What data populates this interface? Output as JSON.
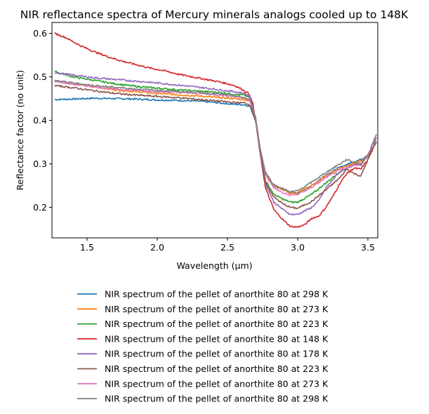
{
  "chart_data": {
    "type": "line",
    "title": "NIR reflectance spectra of Mercury minerals analogs cooled up to 148K",
    "xlabel": "Wavelength (μm)",
    "ylabel": "Reflectance factor (no unit)",
    "xlim": [
      1.25,
      3.57
    ],
    "ylim": [
      0.13,
      0.625
    ],
    "xticks": [
      1.5,
      2.0,
      2.5,
      3.0,
      3.5
    ],
    "xtick_labels": [
      "1.5",
      "2.0",
      "2.5",
      "3.0",
      "3.5"
    ],
    "yticks": [
      0.2,
      0.3,
      0.4,
      0.5,
      0.6
    ],
    "ytick_labels": [
      "0.2",
      "0.3",
      "0.4",
      "0.5",
      "0.6"
    ],
    "grid": false,
    "legend_position": "below",
    "series": [
      {
        "name": "NIR spectrum of the pellet of anorthite 80 at 298 K",
        "color": "#1f77b4",
        "points": [
          [
            1.27,
            0.448
          ],
          [
            1.4,
            0.449
          ],
          [
            1.55,
            0.451
          ],
          [
            1.7,
            0.45
          ],
          [
            1.85,
            0.449
          ],
          [
            2.0,
            0.447
          ],
          [
            2.15,
            0.446
          ],
          [
            2.3,
            0.444
          ],
          [
            2.45,
            0.44
          ],
          [
            2.55,
            0.437
          ],
          [
            2.62,
            0.436
          ],
          [
            2.66,
            0.432
          ],
          [
            2.7,
            0.4
          ],
          [
            2.73,
            0.34
          ],
          [
            2.77,
            0.28
          ],
          [
            2.83,
            0.25
          ],
          [
            2.9,
            0.24
          ],
          [
            2.95,
            0.234
          ],
          [
            3.0,
            0.233
          ],
          [
            3.1,
            0.25
          ],
          [
            3.2,
            0.275
          ],
          [
            3.3,
            0.292
          ],
          [
            3.4,
            0.305
          ],
          [
            3.45,
            0.31
          ],
          [
            3.5,
            0.322
          ],
          [
            3.56,
            0.348
          ]
        ]
      },
      {
        "name": "NIR spectrum of the pellet of anorthite 80 at 273 K",
        "color": "#ff7f0e",
        "points": [
          [
            1.27,
            0.49
          ],
          [
            1.4,
            0.484
          ],
          [
            1.55,
            0.478
          ],
          [
            1.7,
            0.47
          ],
          [
            1.85,
            0.466
          ],
          [
            2.0,
            0.462
          ],
          [
            2.15,
            0.459
          ],
          [
            2.3,
            0.456
          ],
          [
            2.45,
            0.452
          ],
          [
            2.55,
            0.45
          ],
          [
            2.62,
            0.448
          ],
          [
            2.66,
            0.444
          ],
          [
            2.7,
            0.405
          ],
          [
            2.73,
            0.34
          ],
          [
            2.77,
            0.278
          ],
          [
            2.83,
            0.25
          ],
          [
            2.9,
            0.24
          ],
          [
            2.95,
            0.232
          ],
          [
            3.0,
            0.234
          ],
          [
            3.1,
            0.25
          ],
          [
            3.2,
            0.272
          ],
          [
            3.3,
            0.29
          ],
          [
            3.4,
            0.302
          ],
          [
            3.45,
            0.305
          ],
          [
            3.5,
            0.32
          ],
          [
            3.56,
            0.35
          ]
        ]
      },
      {
        "name": "NIR spectrum of the pellet of anorthite 80 at 223 K",
        "color": "#2ca02c",
        "points": [
          [
            1.27,
            0.512
          ],
          [
            1.4,
            0.5
          ],
          [
            1.55,
            0.492
          ],
          [
            1.7,
            0.484
          ],
          [
            1.85,
            0.478
          ],
          [
            2.0,
            0.474
          ],
          [
            2.15,
            0.47
          ],
          [
            2.3,
            0.467
          ],
          [
            2.45,
            0.464
          ],
          [
            2.55,
            0.46
          ],
          [
            2.62,
            0.458
          ],
          [
            2.66,
            0.452
          ],
          [
            2.7,
            0.405
          ],
          [
            2.73,
            0.33
          ],
          [
            2.77,
            0.262
          ],
          [
            2.83,
            0.23
          ],
          [
            2.9,
            0.218
          ],
          [
            2.95,
            0.212
          ],
          [
            3.0,
            0.212
          ],
          [
            3.1,
            0.23
          ],
          [
            3.2,
            0.256
          ],
          [
            3.3,
            0.282
          ],
          [
            3.4,
            0.298
          ],
          [
            3.45,
            0.3
          ],
          [
            3.5,
            0.318
          ],
          [
            3.56,
            0.35
          ]
        ]
      },
      {
        "name": "NIR spectrum of the pellet of anorthite 80 at 148 K",
        "color": "#d62728",
        "points": [
          [
            1.27,
            0.6
          ],
          [
            1.35,
            0.59
          ],
          [
            1.45,
            0.572
          ],
          [
            1.55,
            0.558
          ],
          [
            1.65,
            0.546
          ],
          [
            1.75,
            0.536
          ],
          [
            1.85,
            0.528
          ],
          [
            1.95,
            0.52
          ],
          [
            2.05,
            0.514
          ],
          [
            2.15,
            0.506
          ],
          [
            2.25,
            0.5
          ],
          [
            2.35,
            0.494
          ],
          [
            2.45,
            0.488
          ],
          [
            2.55,
            0.48
          ],
          [
            2.6,
            0.472
          ],
          [
            2.65,
            0.462
          ],
          [
            2.68,
            0.44
          ],
          [
            2.7,
            0.4
          ],
          [
            2.73,
            0.33
          ],
          [
            2.77,
            0.245
          ],
          [
            2.83,
            0.195
          ],
          [
            2.9,
            0.17
          ],
          [
            2.95,
            0.156
          ],
          [
            3.0,
            0.155
          ],
          [
            3.05,
            0.16
          ],
          [
            3.1,
            0.175
          ],
          [
            3.15,
            0.18
          ],
          [
            3.2,
            0.2
          ],
          [
            3.25,
            0.225
          ],
          [
            3.3,
            0.255
          ],
          [
            3.35,
            0.278
          ],
          [
            3.4,
            0.29
          ],
          [
            3.45,
            0.288
          ],
          [
            3.5,
            0.31
          ],
          [
            3.56,
            0.35
          ]
        ]
      },
      {
        "name": "NIR spectrum of the pellet of anorthite 80 at 178 K",
        "color": "#9467bd",
        "points": [
          [
            1.27,
            0.51
          ],
          [
            1.4,
            0.504
          ],
          [
            1.55,
            0.498
          ],
          [
            1.7,
            0.494
          ],
          [
            1.85,
            0.49
          ],
          [
            2.0,
            0.486
          ],
          [
            2.15,
            0.481
          ],
          [
            2.3,
            0.476
          ],
          [
            2.45,
            0.47
          ],
          [
            2.55,
            0.466
          ],
          [
            2.62,
            0.462
          ],
          [
            2.66,
            0.455
          ],
          [
            2.7,
            0.405
          ],
          [
            2.73,
            0.33
          ],
          [
            2.77,
            0.255
          ],
          [
            2.83,
            0.212
          ],
          [
            2.9,
            0.194
          ],
          [
            2.95,
            0.184
          ],
          [
            3.0,
            0.184
          ],
          [
            3.1,
            0.2
          ],
          [
            3.15,
            0.215
          ],
          [
            3.2,
            0.245
          ],
          [
            3.3,
            0.282
          ],
          [
            3.4,
            0.298
          ],
          [
            3.45,
            0.298
          ],
          [
            3.5,
            0.32
          ],
          [
            3.56,
            0.368
          ]
        ]
      },
      {
        "name": "NIR spectrum of the pellet of anorthite 80 at 223 K",
        "color": "#8c564b",
        "points": [
          [
            1.27,
            0.48
          ],
          [
            1.4,
            0.475
          ],
          [
            1.55,
            0.468
          ],
          [
            1.7,
            0.462
          ],
          [
            1.85,
            0.458
          ],
          [
            2.0,
            0.455
          ],
          [
            2.15,
            0.452
          ],
          [
            2.3,
            0.448
          ],
          [
            2.45,
            0.444
          ],
          [
            2.55,
            0.441
          ],
          [
            2.62,
            0.44
          ],
          [
            2.66,
            0.436
          ],
          [
            2.7,
            0.4
          ],
          [
            2.73,
            0.33
          ],
          [
            2.77,
            0.258
          ],
          [
            2.83,
            0.224
          ],
          [
            2.9,
            0.207
          ],
          [
            2.95,
            0.2
          ],
          [
            3.0,
            0.198
          ],
          [
            3.1,
            0.214
          ],
          [
            3.2,
            0.24
          ],
          [
            3.3,
            0.268
          ],
          [
            3.35,
            0.288
          ],
          [
            3.4,
            0.278
          ],
          [
            3.45,
            0.272
          ],
          [
            3.5,
            0.31
          ],
          [
            3.56,
            0.36
          ]
        ]
      },
      {
        "name": "NIR spectrum of the pellet of anorthite 80 at 273 K",
        "color": "#e377c2",
        "points": [
          [
            1.27,
            0.49
          ],
          [
            1.4,
            0.483
          ],
          [
            1.55,
            0.477
          ],
          [
            1.7,
            0.472
          ],
          [
            1.85,
            0.469
          ],
          [
            2.0,
            0.466
          ],
          [
            2.15,
            0.464
          ],
          [
            2.3,
            0.462
          ],
          [
            2.45,
            0.458
          ],
          [
            2.55,
            0.455
          ],
          [
            2.62,
            0.452
          ],
          [
            2.66,
            0.446
          ],
          [
            2.7,
            0.405
          ],
          [
            2.73,
            0.338
          ],
          [
            2.77,
            0.275
          ],
          [
            2.83,
            0.245
          ],
          [
            2.9,
            0.232
          ],
          [
            2.95,
            0.228
          ],
          [
            3.0,
            0.23
          ],
          [
            3.1,
            0.246
          ],
          [
            3.2,
            0.268
          ],
          [
            3.3,
            0.286
          ],
          [
            3.4,
            0.296
          ],
          [
            3.45,
            0.3
          ],
          [
            3.5,
            0.322
          ],
          [
            3.56,
            0.352
          ]
        ]
      },
      {
        "name": "NIR spectrum of the pellet of anorthite 80 at 298 K",
        "color": "#7f7f7f",
        "points": [
          [
            1.27,
            0.492
          ],
          [
            1.4,
            0.486
          ],
          [
            1.55,
            0.48
          ],
          [
            1.7,
            0.476
          ],
          [
            1.85,
            0.472
          ],
          [
            2.0,
            0.469
          ],
          [
            2.15,
            0.466
          ],
          [
            2.3,
            0.464
          ],
          [
            2.45,
            0.46
          ],
          [
            2.55,
            0.456
          ],
          [
            2.62,
            0.452
          ],
          [
            2.66,
            0.446
          ],
          [
            2.7,
            0.408
          ],
          [
            2.73,
            0.34
          ],
          [
            2.77,
            0.28
          ],
          [
            2.83,
            0.252
          ],
          [
            2.9,
            0.242
          ],
          [
            2.95,
            0.236
          ],
          [
            3.0,
            0.238
          ],
          [
            3.1,
            0.258
          ],
          [
            3.2,
            0.28
          ],
          [
            3.3,
            0.3
          ],
          [
            3.35,
            0.31
          ],
          [
            3.4,
            0.304
          ],
          [
            3.45,
            0.3
          ],
          [
            3.5,
            0.32
          ],
          [
            3.56,
            0.352
          ]
        ]
      }
    ]
  }
}
